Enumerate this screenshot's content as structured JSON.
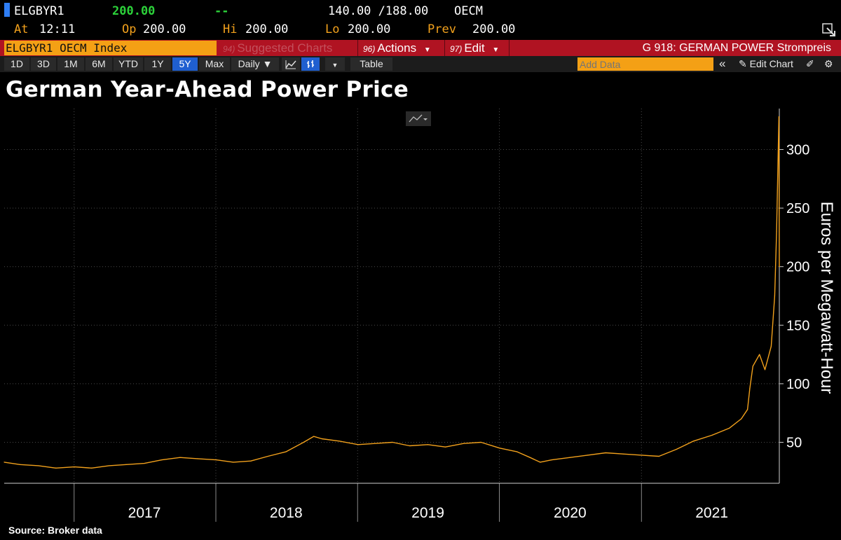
{
  "header": {
    "ticker": "ELGBYR1",
    "last": "200.00",
    "change": "--",
    "bid_ask": "140.00 /188.00",
    "exchange": "OECM",
    "at_label": "At",
    "at_time": "12:11",
    "op_label": "Op",
    "op_value": "200.00",
    "hi_label": "Hi",
    "hi_value": "200.00",
    "lo_label": "Lo",
    "lo_value": "200.00",
    "prev_label": "Prev",
    "prev_value": "200.00"
  },
  "menubar": {
    "index_name": "ELGBYR1 OECM Index",
    "suggested_num": "94)",
    "suggested": "Suggested Charts",
    "actions_num": "96)",
    "actions": "Actions",
    "edit_num": "97)",
    "edit": "Edit",
    "page_title": "G 918: GERMAN POWER Strompreis"
  },
  "toolbar": {
    "ranges": [
      "1D",
      "3D",
      "1M",
      "6M",
      "YTD",
      "1Y",
      "5Y",
      "Max"
    ],
    "active_range": "5Y",
    "frequency": "Daily ▼",
    "table": "Table",
    "add_data_placeholder": "Add Data",
    "edit_chart": "Edit Chart",
    "collapse": "«"
  },
  "chart": {
    "title": "German Year-Ahead Power Price",
    "source": "Source:  Broker data",
    "line_color": "#f2a11c"
  },
  "chart_data": {
    "type": "line",
    "title": "German Year-Ahead Power Price",
    "ylabel": "Euros per Megawatt-Hour",
    "xlabel": "",
    "x_tick_labels": [
      "2017",
      "2018",
      "2019",
      "2020",
      "2021"
    ],
    "y_ticks": [
      50,
      100,
      150,
      200,
      250,
      300
    ],
    "ylim": [
      15,
      335
    ],
    "xlim": [
      "2016-07-05",
      "2021-12-22"
    ],
    "grid": true,
    "legend": "none",
    "series": [
      {
        "x": [
          "2016-07-05",
          "2016-08-15",
          "2016-10-01",
          "2016-11-15",
          "2017-01-02",
          "2017-02-15",
          "2017-04-01",
          "2017-05-15",
          "2017-07-01",
          "2017-08-15",
          "2017-10-01",
          "2017-11-15",
          "2018-01-02",
          "2018-02-15",
          "2018-04-01",
          "2018-05-15",
          "2018-07-01",
          "2018-08-15",
          "2018-09-10",
          "2018-10-01",
          "2018-11-15",
          "2019-01-02",
          "2019-02-15",
          "2019-04-01",
          "2019-05-15",
          "2019-07-01",
          "2019-08-15",
          "2019-10-01",
          "2019-11-15",
          "2020-01-02",
          "2020-02-15",
          "2020-03-20",
          "2020-04-15",
          "2020-05-15",
          "2020-07-01",
          "2020-08-15",
          "2020-10-01",
          "2020-11-15",
          "2021-01-02",
          "2021-02-15",
          "2021-04-01",
          "2021-05-15",
          "2021-07-01",
          "2021-08-15",
          "2021-09-15",
          "2021-10-01",
          "2021-10-07",
          "2021-10-15",
          "2021-11-01",
          "2021-11-15",
          "2021-12-01",
          "2021-12-10",
          "2021-12-15",
          "2021-12-21",
          "2021-12-22"
        ],
        "y": [
          33,
          31,
          30,
          28,
          29,
          28,
          30,
          31,
          32,
          35,
          37,
          36,
          35,
          33,
          34,
          38,
          42,
          50,
          55,
          53,
          51,
          48,
          49,
          50,
          47,
          48,
          46,
          49,
          50,
          45,
          42,
          37,
          33,
          35,
          37,
          39,
          41,
          40,
          39,
          38,
          44,
          51,
          56,
          62,
          70,
          78,
          96,
          115,
          125,
          112,
          132,
          175,
          230,
          328,
          200
        ]
      }
    ]
  }
}
